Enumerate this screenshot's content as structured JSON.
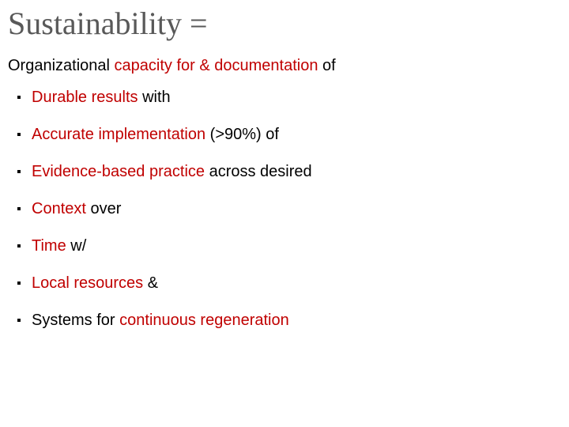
{
  "colors": {
    "title": "#595959",
    "body": "#000000",
    "accent": "#c00000",
    "background": "#ffffff"
  },
  "title_fontsize": 40,
  "body_fontsize": 20,
  "title": "Sustainability =",
  "subtitle_pre": "Organizational ",
  "subtitle_accent": "capacity for & documentation",
  "subtitle_post": " of",
  "items": [
    {
      "pre": "",
      "accent": "Durable results",
      "post": " with"
    },
    {
      "pre": "",
      "accent": "Accurate implementation",
      "post": " (>90%) of"
    },
    {
      "pre": "",
      "accent": "Evidence-based practice",
      "post": " across desired"
    },
    {
      "pre": "",
      "accent": "Context",
      "post": " over"
    },
    {
      "pre": "",
      "accent": "Time",
      "post": " w/"
    },
    {
      "pre": "",
      "accent": "Local resources",
      "post": " &"
    },
    {
      "pre": "Systems for ",
      "accent": "continuous regeneration",
      "post": ""
    }
  ]
}
